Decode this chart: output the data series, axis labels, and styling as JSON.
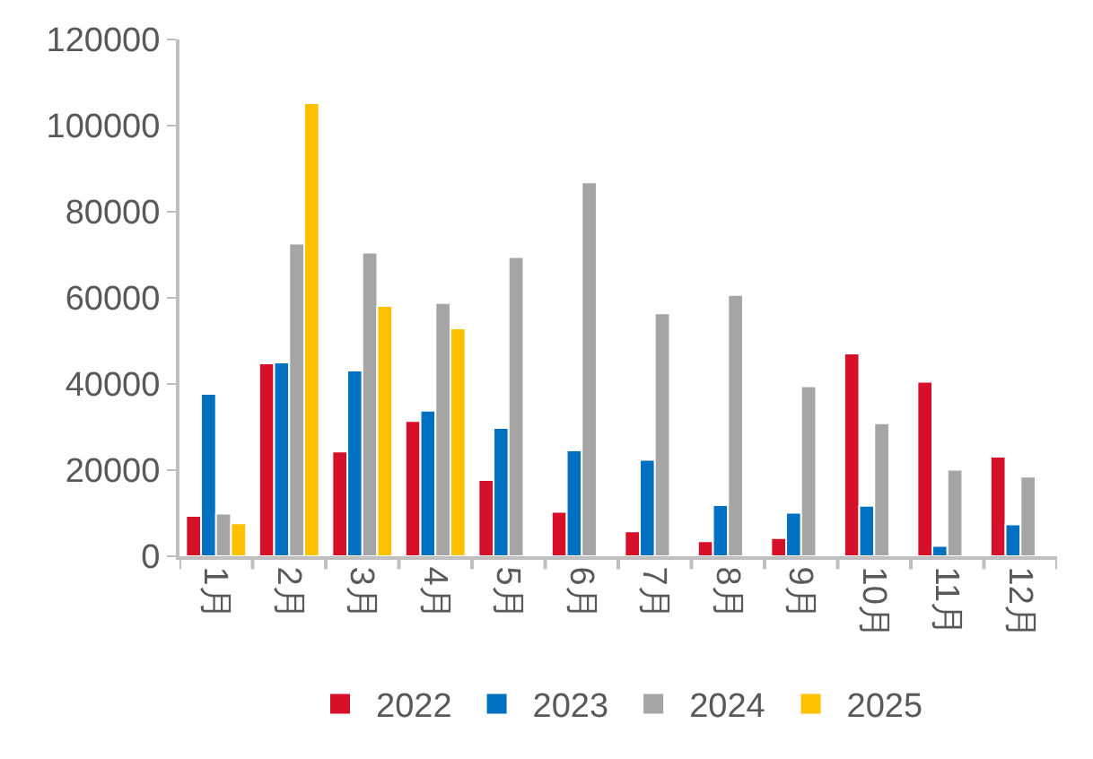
{
  "chart_data": {
    "type": "bar",
    "categories": [
      "1月",
      "2月",
      "3月",
      "4月",
      "5月",
      "6月",
      "7月",
      "8月",
      "9月",
      "10月",
      "11月",
      "12月"
    ],
    "series": [
      {
        "name": "2022",
        "color": "#d7102a",
        "values": [
          9400,
          44800,
          24300,
          31400,
          17700,
          10300,
          5800,
          3500,
          4200,
          47100,
          40500,
          23100
        ]
      },
      {
        "name": "2023",
        "color": "#0070c0",
        "values": [
          37700,
          45000,
          43100,
          33800,
          29800,
          24600,
          22400,
          11900,
          10100,
          11700,
          2400,
          7400
        ]
      },
      {
        "name": "2024",
        "color": "#a5a5a5",
        "values": [
          9900,
          72600,
          70500,
          58800,
          69500,
          86800,
          56400,
          60700,
          39500,
          30900,
          20100,
          18500
        ]
      },
      {
        "name": "2025",
        "color": "#ffc000",
        "values": [
          7650,
          105200,
          58100,
          52900,
          null,
          null,
          null,
          null,
          null,
          null,
          null,
          null
        ]
      }
    ],
    "ylim": [
      0,
      120000
    ],
    "yticks": [
      0,
      20000,
      40000,
      60000,
      80000,
      100000,
      120000
    ],
    "grid": false,
    "legend": "bottom"
  }
}
